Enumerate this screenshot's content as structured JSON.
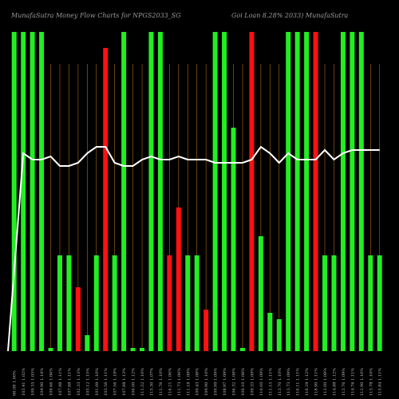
{
  "chart_data": {
    "type": "bar",
    "title_left": "MunafaSutra  Money Flow  Charts for NPGS2033_SG",
    "title_right": "Goi  Loan  8.28% 2033) MunafaSutra",
    "ylim": [
      0,
      100
    ],
    "bar_colors": {
      "up": "#22ee22",
      "down": "#ff1111"
    },
    "line_color": "#ffffff",
    "grid_color": "#b06a10",
    "categories": [
      "98.08 1.00%",
      "103.41 1.02%",
      "109.35 1.05%",
      "104.90 1.14%",
      "109.66 1.06%",
      "107.98 1.11%",
      "107.88 1.11%",
      "102.33 1.13%",
      "105.12 1.15%",
      "101.09 1.10%",
      "103.56 1.11%",
      "107.56 1.19%",
      "107.88 1.13%",
      "106.00 1.12%",
      "111.52 1.10%",
      "115.30 1.07%",
      "111.76 1.10%",
      "116.21 1.06%",
      "111.73 1.06%",
      "111.18 1.09%",
      "109.43 1.08%",
      "109.90 1.10%",
      "109.99 1.09%",
      "108.97 1.09%",
      "106.32 1.08%",
      "106.10 1.08%",
      "109.33 1.09%",
      "110.00 1.09%",
      "111.15 1.11%",
      "113.70 1.10%",
      "113.73 1.09%",
      "116.11 1.11%",
      "116.29 1.12%",
      "118.90 1.11%",
      "113.00 1.08%",
      "114.88 1.12%",
      "113.76 1.09%",
      "114.76 1.11%",
      "112.90 1.10%",
      "113.78 1.10%",
      "115.84 1.11%"
    ],
    "values": [
      100,
      100,
      100,
      100,
      1,
      30,
      30,
      20,
      5,
      30,
      95,
      30,
      100,
      1,
      1,
      100,
      100,
      30,
      45,
      30,
      30,
      13,
      100,
      100,
      70,
      1,
      100,
      36,
      12,
      10,
      100,
      100,
      100,
      100,
      30,
      30,
      100,
      100,
      100,
      30,
      30
    ],
    "directions": [
      "up",
      "up",
      "up",
      "up",
      "up",
      "up",
      "up",
      "down",
      "up",
      "up",
      "down",
      "up",
      "up",
      "up",
      "up",
      "up",
      "up",
      "down",
      "down",
      "up",
      "up",
      "down",
      "up",
      "up",
      "up",
      "up",
      "down",
      "up",
      "up",
      "up",
      "up",
      "up",
      "up",
      "down",
      "up",
      "up",
      "up",
      "up",
      "up",
      "up",
      "up"
    ],
    "line_values": [
      0,
      62,
      60,
      60,
      61,
      58,
      58,
      59,
      62,
      64,
      64,
      59,
      58,
      58,
      60,
      61,
      60,
      60,
      61,
      60,
      60,
      60,
      59,
      59,
      59,
      59,
      60,
      64,
      62,
      59,
      62,
      60,
      60,
      60,
      63,
      60,
      62,
      63,
      63,
      63,
      63
    ]
  }
}
